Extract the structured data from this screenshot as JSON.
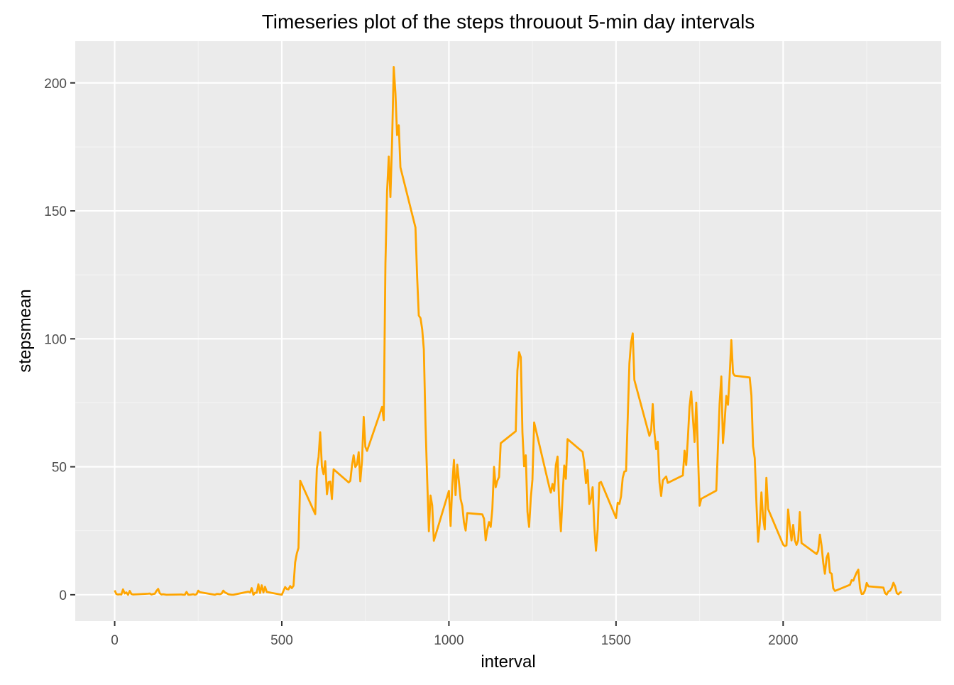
{
  "chart_data": {
    "type": "line",
    "title": "Timeseries plot of the steps throuout 5-min day intervals",
    "xlabel": "interval",
    "ylabel": "stepsmean",
    "xlim": [
      -118,
      2473
    ],
    "ylim": [
      -10.3,
      216.3
    ],
    "x_ticks": [
      {
        "value": 0,
        "label": "0"
      },
      {
        "value": 500,
        "label": "500"
      },
      {
        "value": 1000,
        "label": "1000"
      },
      {
        "value": 1500,
        "label": "1500"
      },
      {
        "value": 2000,
        "label": "2000"
      }
    ],
    "x_minor_ticks": [
      250,
      750,
      1250,
      1750,
      2250
    ],
    "y_ticks": [
      {
        "value": 0,
        "label": "0"
      },
      {
        "value": 50,
        "label": "50"
      },
      {
        "value": 100,
        "label": "100"
      },
      {
        "value": 150,
        "label": "150"
      },
      {
        "value": 200,
        "label": "200"
      }
    ],
    "y_minor_ticks": [
      25,
      75,
      125,
      175
    ],
    "grid": true,
    "legend": "none",
    "colors": {
      "panel_background": "#EBEBEB",
      "grid_major": "#FFFFFF",
      "grid_minor": "#F4F4F4",
      "line": "#FFA500",
      "axis_text": "#4D4D4D",
      "title_text": "#000000"
    },
    "series": [
      {
        "color": "#FFA500",
        "x": [
          0,
          5,
          10,
          15,
          20,
          25,
          30,
          35,
          40,
          45,
          50,
          55,
          100,
          105,
          110,
          115,
          120,
          125,
          130,
          135,
          140,
          145,
          150,
          155,
          200,
          205,
          210,
          215,
          220,
          225,
          230,
          235,
          240,
          245,
          250,
          255,
          300,
          305,
          310,
          315,
          320,
          325,
          330,
          335,
          340,
          345,
          350,
          355,
          400,
          405,
          410,
          415,
          420,
          425,
          430,
          435,
          440,
          445,
          450,
          455,
          500,
          505,
          510,
          515,
          520,
          525,
          530,
          535,
          540,
          545,
          550,
          555,
          600,
          605,
          610,
          615,
          620,
          625,
          630,
          635,
          640,
          645,
          650,
          655,
          700,
          705,
          710,
          715,
          720,
          725,
          730,
          735,
          740,
          745,
          750,
          755,
          800,
          805,
          810,
          815,
          820,
          825,
          830,
          835,
          840,
          845,
          850,
          855,
          900,
          905,
          910,
          915,
          920,
          925,
          930,
          935,
          940,
          945,
          950,
          955,
          1000,
          1005,
          1010,
          1015,
          1020,
          1025,
          1030,
          1035,
          1040,
          1045,
          1050,
          1055,
          1100,
          1105,
          1110,
          1115,
          1120,
          1125,
          1130,
          1135,
          1140,
          1145,
          1150,
          1155,
          1200,
          1205,
          1210,
          1215,
          1220,
          1225,
          1230,
          1235,
          1240,
          1245,
          1250,
          1255,
          1300,
          1305,
          1310,
          1315,
          1320,
          1325,
          1330,
          1335,
          1340,
          1345,
          1350,
          1355,
          1400,
          1405,
          1410,
          1415,
          1420,
          1425,
          1430,
          1435,
          1440,
          1445,
          1450,
          1455,
          1500,
          1505,
          1510,
          1515,
          1520,
          1525,
          1530,
          1535,
          1540,
          1545,
          1550,
          1555,
          1600,
          1605,
          1610,
          1615,
          1620,
          1625,
          1630,
          1635,
          1640,
          1645,
          1650,
          1655,
          1700,
          1705,
          1710,
          1715,
          1720,
          1725,
          1730,
          1735,
          1740,
          1745,
          1750,
          1755,
          1800,
          1805,
          1810,
          1815,
          1820,
          1825,
          1830,
          1835,
          1840,
          1845,
          1850,
          1855,
          1900,
          1905,
          1910,
          1915,
          1920,
          1925,
          1930,
          1935,
          1940,
          1945,
          1950,
          1955,
          2000,
          2005,
          2010,
          2015,
          2020,
          2025,
          2030,
          2035,
          2040,
          2045,
          2050,
          2055,
          2100,
          2105,
          2110,
          2115,
          2120,
          2125,
          2130,
          2135,
          2140,
          2145,
          2150,
          2155,
          2200,
          2205,
          2210,
          2215,
          2220,
          2225,
          2230,
          2235,
          2240,
          2245,
          2250,
          2255,
          2300,
          2305,
          2310,
          2315,
          2320,
          2325,
          2330,
          2335,
          2340,
          2345,
          2350,
          2355
        ],
        "y": [
          1.7,
          0.3,
          0.1,
          0.2,
          0.1,
          2.1,
          0.5,
          0.9,
          0,
          1.5,
          0.3,
          0.1,
          0.4,
          0.5,
          0.1,
          0.3,
          0.4,
          1.5,
          2.3,
          0.6,
          0.1,
          0.2,
          0.1,
          0,
          0.1,
          0,
          0,
          1.1,
          0,
          0,
          0.1,
          0.2,
          0,
          0.2,
          1.6,
          1,
          0,
          0.3,
          0.3,
          0.2,
          0.5,
          1.6,
          0.9,
          0.6,
          0.2,
          0.1,
          0,
          0,
          1.2,
          0.9,
          2.6,
          0,
          0.8,
          0.8,
          4.1,
          0.7,
          3.7,
          0.9,
          3.1,
          1.1,
          0,
          1.5,
          3,
          2.2,
          2.1,
          3.4,
          2.6,
          3.5,
          12.6,
          16.2,
          18.3,
          44.6,
          31.5,
          49.3,
          53.8,
          63.5,
          50,
          47.1,
          52.2,
          39.3,
          44,
          44.2,
          37.4,
          49,
          43.9,
          44.5,
          50.5,
          54.5,
          49.9,
          50.9,
          55.7,
          44.3,
          52.3,
          69.5,
          57.8,
          56.2,
          73.4,
          68.2,
          129.4,
          157.5,
          171.2,
          155.4,
          177.3,
          206.2,
          195.9,
          179.6,
          183.4,
          167,
          143.5,
          124,
          109.1,
          108.1,
          103.7,
          95.9,
          66.2,
          45.2,
          24.8,
          38.8,
          34.9,
          21.1,
          40.6,
          26.9,
          42.4,
          52.7,
          38.9,
          50.8,
          44.3,
          37.4,
          34.7,
          28.3,
          25.1,
          31.9,
          31.4,
          29.7,
          21.3,
          25.5,
          28.4,
          26.5,
          33.4,
          50,
          42,
          44.6,
          46,
          59.2,
          63.9,
          87.6,
          94.8,
          92.8,
          63.4,
          50.2,
          54.5,
          32.4,
          26.5,
          37.7,
          45,
          67.3,
          42.3,
          39.9,
          43.3,
          40.6,
          50.6,
          54,
          35,
          24.8,
          38.3,
          50.5,
          45.3,
          60.8,
          55.8,
          51.5,
          43.6,
          48.7,
          35.5,
          37.6,
          42,
          26.9,
          17.2,
          25.6,
          43.7,
          44.1,
          30,
          36,
          35.5,
          38.4,
          45.7,
          48.1,
          48.4,
          68.6,
          90.4,
          98.5,
          102.1,
          83.9,
          62.1,
          64.1,
          74.5,
          63.2,
          56.9,
          59.8,
          43.9,
          38.6,
          44.7,
          45.5,
          46.2,
          43.7,
          46.6,
          56.3,
          50.7,
          61.2,
          73.4,
          79.4,
          68.9,
          59.7,
          75.1,
          56.5,
          34.8,
          37.5,
          40.7,
          58,
          74.7,
          85.3,
          59.3,
          67.8,
          77.7,
          74.2,
          85.3,
          99.5,
          86.6,
          85.6,
          84.9,
          77.8,
          58,
          53.4,
          36.3,
          20.7,
          27.4,
          40,
          30.2,
          25.5,
          45.7,
          33.5,
          19.6,
          19,
          19.3,
          33.3,
          26.8,
          21.2,
          27.3,
          21.3,
          19.5,
          21.3,
          32.3,
          20.2,
          15.9,
          17.2,
          23.5,
          19.2,
          12.5,
          8.2,
          14.4,
          16.2,
          8.7,
          8.2,
          2.5,
          1.5,
          3.9,
          5.7,
          5.5,
          7.2,
          8.7,
          9.8,
          2.5,
          0.3,
          0.4,
          1.7,
          4.6,
          3.3,
          2.8,
          0.6,
          0.1,
          1.3,
          1.6,
          2.7,
          4.7,
          3.3,
          0.6,
          0.2,
          0.9,
          1.1
        ]
      }
    ]
  }
}
